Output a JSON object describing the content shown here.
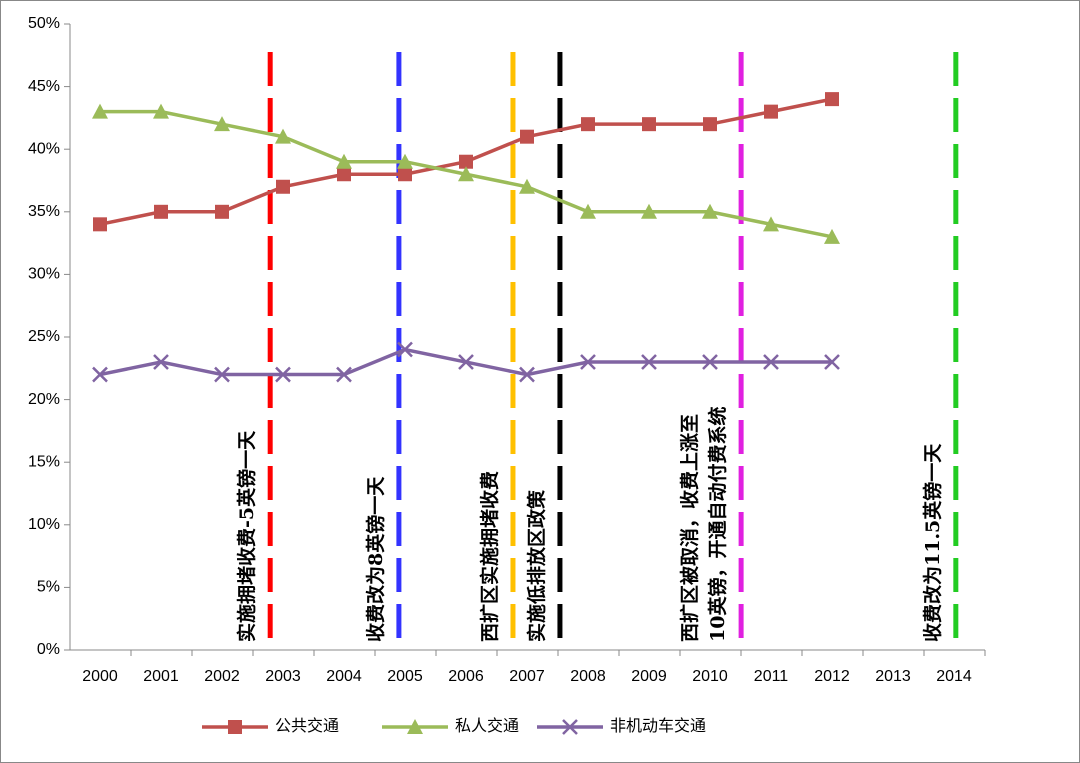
{
  "chart_data": {
    "type": "line",
    "categories": [
      "2000",
      "2001",
      "2002",
      "2003",
      "2004",
      "2005",
      "2006",
      "2007",
      "2008",
      "2009",
      "2010",
      "2011",
      "2012",
      "2013",
      "2014"
    ],
    "series": [
      {
        "name": "公共交通",
        "color": "#c0504d",
        "marker": "square",
        "values": [
          34,
          35,
          35,
          37,
          38,
          38,
          39,
          41,
          42,
          42,
          42,
          43,
          44,
          null,
          null
        ]
      },
      {
        "name": "私人交通",
        "color": "#9bbb59",
        "marker": "triangle",
        "values": [
          43,
          43,
          42,
          41,
          39,
          39,
          38,
          37,
          35,
          35,
          35,
          34,
          33,
          null,
          null
        ]
      },
      {
        "name": "非机动车交通",
        "color": "#8064a2",
        "marker": "x",
        "values": [
          22,
          23,
          22,
          22,
          22,
          24,
          23,
          22,
          23,
          23,
          23,
          23,
          23,
          null,
          null
        ]
      }
    ],
    "ylim": [
      0,
      50
    ],
    "yticks": [
      {
        "value": 0,
        "label": "0%"
      },
      {
        "value": 5,
        "label": "5%"
      },
      {
        "value": 10,
        "label": "10%"
      },
      {
        "value": 15,
        "label": "15%"
      },
      {
        "value": 20,
        "label": "20%"
      },
      {
        "value": 25,
        "label": "25%"
      },
      {
        "value": 30,
        "label": "30%"
      },
      {
        "value": 35,
        "label": "35%"
      },
      {
        "value": 40,
        "label": "40%"
      },
      {
        "value": 45,
        "label": "45%"
      },
      {
        "value": 50,
        "label": "50%"
      }
    ],
    "legend": "bottom",
    "annotations": [
      {
        "color": "#ff0000",
        "lines": [
          "实施拥堵收费-5英镑一天"
        ]
      },
      {
        "color": "#3333ff",
        "lines": [
          "收费改为8英镑一天"
        ]
      },
      {
        "color": "#ffc000",
        "lines": [
          "西扩区实施拥堵收费"
        ]
      },
      {
        "color": "#000000",
        "lines": [
          "实施低排放区政策"
        ]
      },
      {
        "color": "#e020e0",
        "lines": [
          "西扩区被取消，收费上涨至",
          "10英镑，开通自动付费系统"
        ]
      },
      {
        "color": "#22cc22",
        "lines": [
          "收费改为11.5英镑一天"
        ]
      }
    ]
  }
}
